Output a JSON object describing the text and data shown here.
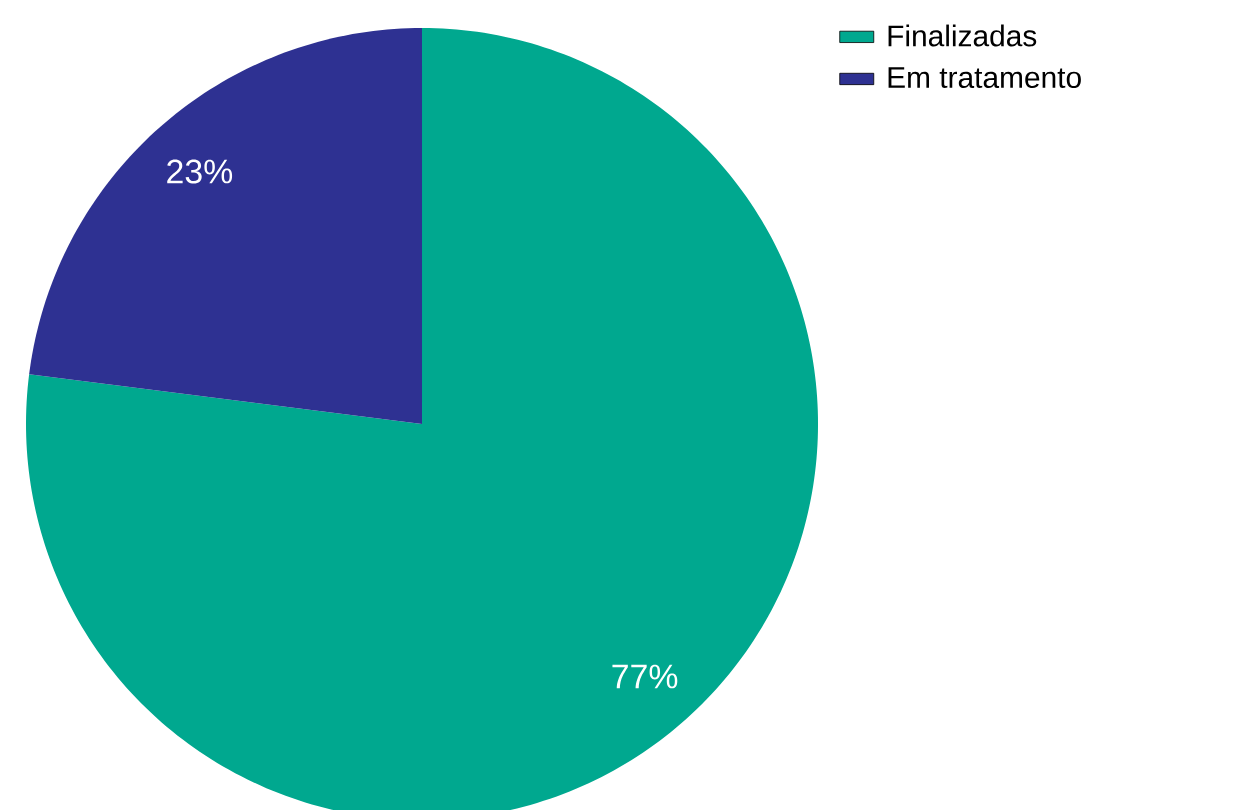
{
  "chart_data": {
    "type": "pie",
    "categories": [
      "Finalizadas",
      "Em tratamento"
    ],
    "values": [
      77,
      23
    ],
    "colors": [
      "#00a88f",
      "#2e3192"
    ],
    "value_labels": [
      "77%",
      "23%"
    ],
    "legend": "top right"
  }
}
